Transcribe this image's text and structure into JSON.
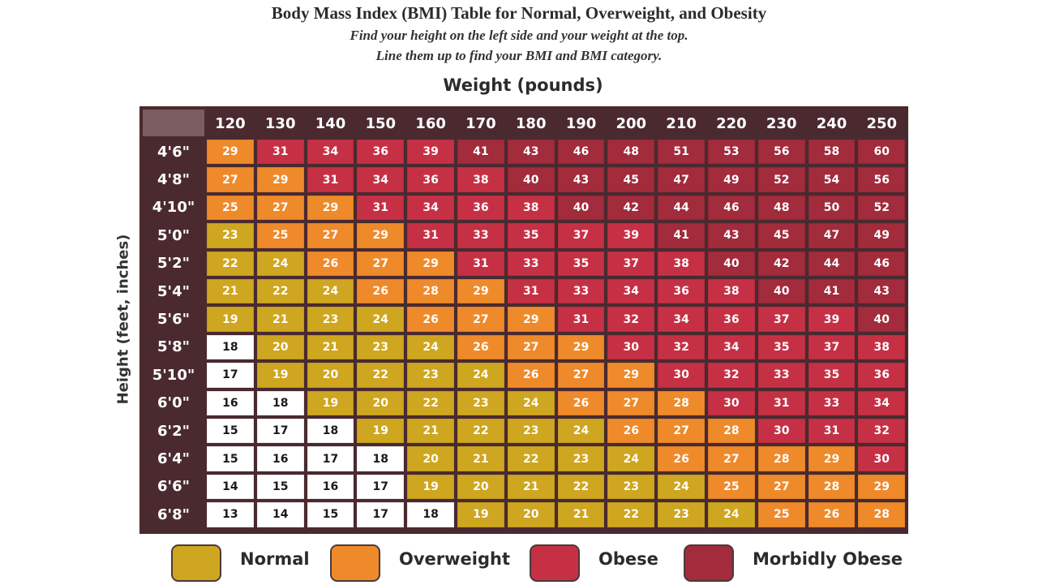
{
  "header": {
    "title": "Body Mass Index (BMI) Table for Normal, Overweight, and Obesity",
    "subtitle_1": "Find your height on the left side and your weight at the top.",
    "subtitle_2": "Line them up to find your BMI and BMI category."
  },
  "colors": {
    "underweight": "#ffffff",
    "normal": "#cfa620",
    "overweight": "#ef8a2b",
    "obese": "#c63045",
    "morbidly_obese": "#a22b3c",
    "header_bg": "#4a2a2f"
  },
  "legend": [
    {
      "label": "Normal",
      "category": "normal",
      "color": "#cfa620"
    },
    {
      "label": "Overweight",
      "category": "overweight",
      "color": "#ef8a2b"
    },
    {
      "label": "Obese",
      "category": "obese",
      "color": "#c63045"
    },
    {
      "label": "Morbidly Obese",
      "category": "morbidly_obese",
      "color": "#a22b3c"
    }
  ],
  "chart_data": {
    "type": "heatmap",
    "title": "Body Mass Index (BMI) Table for Normal, Overweight, and Obesity",
    "xlabel": "Weight (pounds)",
    "ylabel": "Height (feet, inches)",
    "x": [
      "120",
      "130",
      "140",
      "150",
      "160",
      "170",
      "180",
      "190",
      "200",
      "210",
      "220",
      "230",
      "240",
      "250"
    ],
    "y": [
      "4'6\"",
      "4'8\"",
      "4'10\"",
      "5'0\"",
      "5'2\"",
      "5'4\"",
      "5'6\"",
      "5'8\"",
      "5'10\"",
      "6'0\"",
      "6'2\"",
      "6'4\"",
      "6'6\"",
      "6'8\""
    ],
    "values": [
      [
        29,
        31,
        34,
        36,
        39,
        41,
        43,
        46,
        48,
        51,
        53,
        56,
        58,
        60
      ],
      [
        27,
        29,
        31,
        34,
        36,
        38,
        40,
        43,
        45,
        47,
        49,
        52,
        54,
        56
      ],
      [
        25,
        27,
        29,
        31,
        34,
        36,
        38,
        40,
        42,
        44,
        46,
        48,
        50,
        52
      ],
      [
        23,
        25,
        27,
        29,
        31,
        33,
        35,
        37,
        39,
        41,
        43,
        45,
        47,
        49
      ],
      [
        22,
        24,
        26,
        27,
        29,
        31,
        33,
        35,
        37,
        38,
        40,
        42,
        44,
        46
      ],
      [
        21,
        22,
        24,
        26,
        28,
        29,
        31,
        33,
        34,
        36,
        38,
        40,
        41,
        43
      ],
      [
        19,
        21,
        23,
        24,
        26,
        27,
        29,
        31,
        32,
        34,
        36,
        37,
        39,
        40
      ],
      [
        18,
        20,
        21,
        23,
        24,
        26,
        27,
        29,
        30,
        32,
        34,
        35,
        37,
        38
      ],
      [
        17,
        19,
        20,
        22,
        23,
        24,
        26,
        27,
        29,
        30,
        32,
        33,
        35,
        36
      ],
      [
        16,
        18,
        19,
        20,
        22,
        23,
        24,
        26,
        27,
        28,
        30,
        31,
        33,
        34
      ],
      [
        15,
        17,
        18,
        19,
        21,
        22,
        23,
        24,
        26,
        27,
        28,
        30,
        31,
        32
      ],
      [
        15,
        16,
        17,
        18,
        20,
        21,
        22,
        23,
        24,
        26,
        27,
        28,
        29,
        30
      ],
      [
        14,
        15,
        16,
        17,
        19,
        20,
        21,
        22,
        23,
        24,
        25,
        27,
        28,
        29
      ],
      [
        13,
        14,
        15,
        17,
        18,
        19,
        20,
        21,
        22,
        23,
        24,
        25,
        26,
        28
      ]
    ],
    "categories": [
      [
        "overweight",
        "obese",
        "obese",
        "obese",
        "obese",
        "morbidly_obese",
        "morbidly_obese",
        "morbidly_obese",
        "morbidly_obese",
        "morbidly_obese",
        "morbidly_obese",
        "morbidly_obese",
        "morbidly_obese",
        "morbidly_obese"
      ],
      [
        "overweight",
        "overweight",
        "obese",
        "obese",
        "obese",
        "obese",
        "morbidly_obese",
        "morbidly_obese",
        "morbidly_obese",
        "morbidly_obese",
        "morbidly_obese",
        "morbidly_obese",
        "morbidly_obese",
        "morbidly_obese"
      ],
      [
        "overweight",
        "overweight",
        "overweight",
        "obese",
        "obese",
        "obese",
        "obese",
        "morbidly_obese",
        "morbidly_obese",
        "morbidly_obese",
        "morbidly_obese",
        "morbidly_obese",
        "morbidly_obese",
        "morbidly_obese"
      ],
      [
        "normal",
        "overweight",
        "overweight",
        "overweight",
        "obese",
        "obese",
        "obese",
        "obese",
        "obese",
        "morbidly_obese",
        "morbidly_obese",
        "morbidly_obese",
        "morbidly_obese",
        "morbidly_obese"
      ],
      [
        "normal",
        "normal",
        "overweight",
        "overweight",
        "overweight",
        "obese",
        "obese",
        "obese",
        "obese",
        "obese",
        "morbidly_obese",
        "morbidly_obese",
        "morbidly_obese",
        "morbidly_obese"
      ],
      [
        "normal",
        "normal",
        "normal",
        "overweight",
        "overweight",
        "overweight",
        "obese",
        "obese",
        "obese",
        "obese",
        "obese",
        "morbidly_obese",
        "morbidly_obese",
        "morbidly_obese"
      ],
      [
        "normal",
        "normal",
        "normal",
        "normal",
        "overweight",
        "overweight",
        "overweight",
        "obese",
        "obese",
        "obese",
        "obese",
        "obese",
        "obese",
        "morbidly_obese"
      ],
      [
        "underweight",
        "normal",
        "normal",
        "normal",
        "normal",
        "overweight",
        "overweight",
        "overweight",
        "obese",
        "obese",
        "obese",
        "obese",
        "obese",
        "obese"
      ],
      [
        "underweight",
        "normal",
        "normal",
        "normal",
        "normal",
        "normal",
        "overweight",
        "overweight",
        "overweight",
        "obese",
        "obese",
        "obese",
        "obese",
        "obese"
      ],
      [
        "underweight",
        "underweight",
        "normal",
        "normal",
        "normal",
        "normal",
        "normal",
        "overweight",
        "overweight",
        "overweight",
        "obese",
        "obese",
        "obese",
        "obese"
      ],
      [
        "underweight",
        "underweight",
        "underweight",
        "normal",
        "normal",
        "normal",
        "normal",
        "normal",
        "overweight",
        "overweight",
        "overweight",
        "obese",
        "obese",
        "obese"
      ],
      [
        "underweight",
        "underweight",
        "underweight",
        "underweight",
        "normal",
        "normal",
        "normal",
        "normal",
        "normal",
        "overweight",
        "overweight",
        "overweight",
        "overweight",
        "obese"
      ],
      [
        "underweight",
        "underweight",
        "underweight",
        "underweight",
        "normal",
        "normal",
        "normal",
        "normal",
        "normal",
        "normal",
        "overweight",
        "overweight",
        "overweight",
        "overweight"
      ],
      [
        "underweight",
        "underweight",
        "underweight",
        "underweight",
        "underweight",
        "normal",
        "normal",
        "normal",
        "normal",
        "normal",
        "normal",
        "overweight",
        "overweight",
        "overweight"
      ]
    ]
  }
}
